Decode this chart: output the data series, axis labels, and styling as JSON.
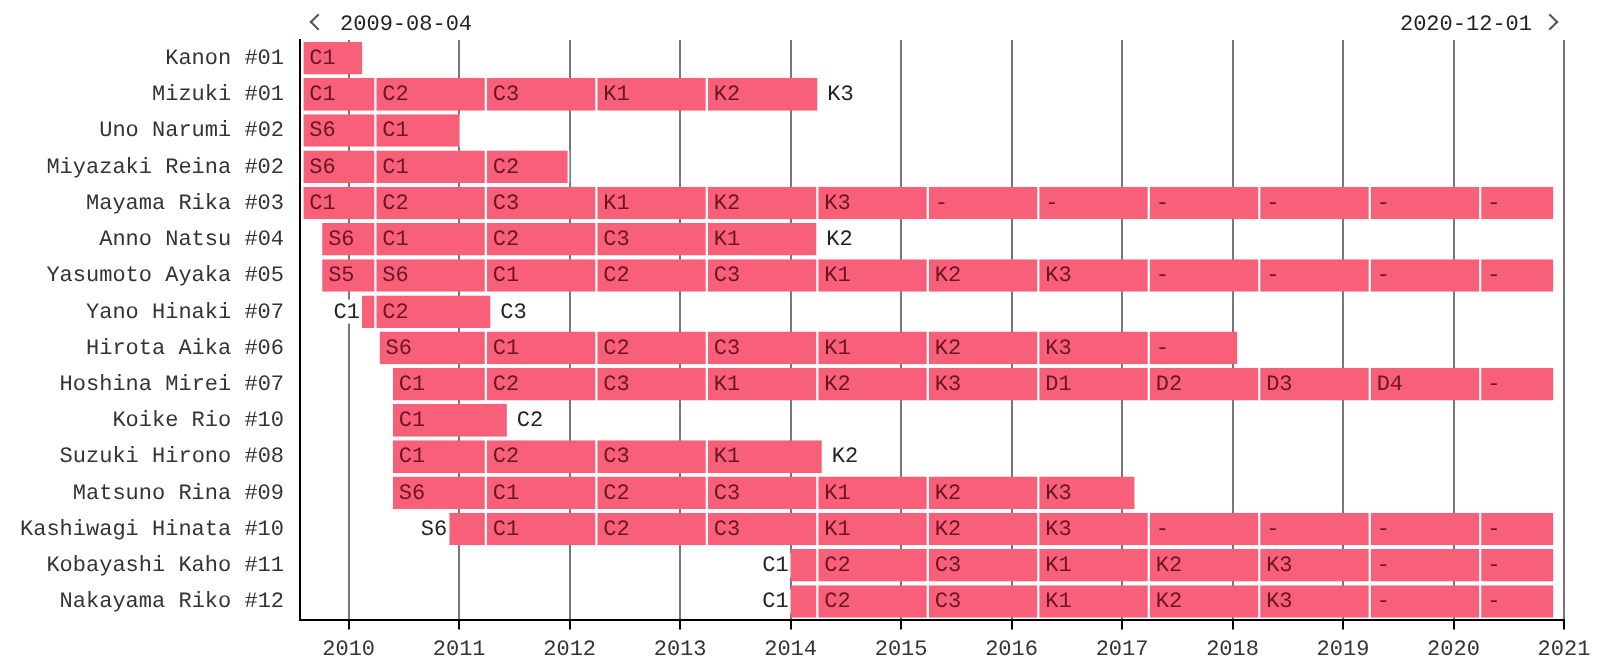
{
  "chart_data": {
    "type": "bar",
    "orientation": "horizontal",
    "grid": "x",
    "legend": false,
    "categories": [
      "Kanon #01",
      "Mizuki #01",
      "Uno Narumi #02",
      "Miyazaki Reina #02",
      "Mayama Rika #03",
      "Anno Natsu #04",
      "Yasumoto Ayaka #05",
      "Yano Hinaki #07",
      "Hirota Aika #06",
      "Hoshina Mirei #07",
      "Koike Rio #10",
      "Suzuki Hirono #08",
      "Matsuno Rina #09",
      "Kashiwagi Hinata #10",
      "Kobayashi Kaho #11",
      "Nakayama Riko #12"
    ],
    "xlim": [
      2009.56,
      2021
    ],
    "xticks": [
      2010,
      2011,
      2012,
      2013,
      2014,
      2015,
      2016,
      2017,
      2018,
      2019,
      2020,
      2021
    ],
    "series": [
      {
        "color": "#f8607a",
        "base": [
          2009.59,
          2009.59,
          2009.59,
          2009.59,
          2009.59,
          2009.76,
          2009.76,
          2010.12,
          2010.28,
          2010.4,
          2010.4,
          2010.4,
          2010.4,
          2010.91,
          2014.0,
          2014.0
        ],
        "values": [
          0.55,
          0.66,
          0.66,
          0.66,
          0.66,
          0.49,
          0.49,
          0.13,
          0.97,
          0.85,
          1.05,
          0.85,
          0.85,
          0.34,
          0.25,
          0.25
        ],
        "value_labels": [
          "C1",
          "C1",
          "S6",
          "S6",
          "C1",
          "S6",
          "S5",
          "C1",
          "S6",
          "C1",
          "C1",
          "C1",
          "S6",
          "S6",
          "C1",
          "C1"
        ]
      },
      {
        "color": "#f8607a",
        "base": [
          null,
          2010.25,
          2010.25,
          2010.25,
          2010.25,
          2010.25,
          2010.25,
          2010.25,
          2011.25,
          2011.25,
          null,
          2011.25,
          2011.25,
          2011.25,
          2014.25,
          2014.25
        ],
        "values": [
          null,
          1,
          0.77,
          1,
          1,
          1,
          1,
          1.05,
          1,
          1,
          null,
          1,
          1,
          1,
          1,
          1
        ],
        "value_labels": [
          null,
          "C2",
          "C1",
          "C1",
          "C2",
          "C1",
          "S6",
          "C2",
          "C1",
          "C2",
          null,
          "C2",
          "C1",
          "C1",
          "C2",
          "C2"
        ]
      },
      {
        "color": "#f8607a",
        "base": [
          null,
          2011.25,
          null,
          2011.25,
          2011.25,
          2011.25,
          2011.25,
          null,
          2012.25,
          2012.25,
          null,
          2012.25,
          2012.25,
          2012.25,
          2015.25,
          2015.25
        ],
        "values": [
          null,
          1,
          null,
          0.75,
          1,
          1,
          1,
          null,
          1,
          1,
          null,
          1,
          1,
          1,
          1,
          1
        ],
        "value_labels": [
          null,
          "C3",
          null,
          "C2",
          "C3",
          "C2",
          "C1",
          null,
          "C2",
          "C3",
          null,
          "C3",
          "C2",
          "C2",
          "C3",
          "C3"
        ]
      },
      {
        "color": "#f8607a",
        "base": [
          null,
          2012.25,
          null,
          null,
          2012.25,
          2012.25,
          2012.25,
          null,
          2013.25,
          2013.25,
          null,
          2013.25,
          2013.25,
          2013.25,
          2016.25,
          2016.25
        ],
        "values": [
          null,
          1,
          null,
          null,
          1,
          1,
          1,
          null,
          1,
          1,
          null,
          1.05,
          1,
          1,
          1,
          1
        ],
        "value_labels": [
          null,
          "K1",
          null,
          null,
          "K1",
          "C3",
          "C2",
          null,
          "C3",
          "K1",
          null,
          "K1",
          "C3",
          "C3",
          "K1",
          "K1"
        ]
      },
      {
        "color": "#f8607a",
        "base": [
          null,
          2013.25,
          null,
          null,
          2013.25,
          2013.25,
          2013.25,
          null,
          2014.25,
          2014.25,
          null,
          null,
          2014.25,
          2014.25,
          2017.25,
          2017.25
        ],
        "values": [
          null,
          1.01,
          null,
          null,
          1,
          1,
          1,
          null,
          1,
          1,
          null,
          null,
          1,
          1,
          1,
          1
        ],
        "value_labels": [
          null,
          "K2",
          null,
          null,
          "K2",
          "K1",
          "C3",
          null,
          "K1",
          "K2",
          null,
          null,
          "K1",
          "K1",
          "K2",
          "K2"
        ]
      },
      {
        "color": "#f8607a",
        "base": [
          null,
          null,
          null,
          null,
          2014.25,
          null,
          2014.25,
          null,
          2015.25,
          2015.25,
          null,
          null,
          2015.25,
          2015.25,
          2018.25,
          2018.25
        ],
        "values": [
          null,
          null,
          null,
          null,
          1,
          null,
          1,
          null,
          1,
          1,
          null,
          null,
          1,
          1,
          1,
          1
        ],
        "value_labels": [
          null,
          null,
          null,
          null,
          "K3",
          null,
          "K1",
          null,
          "K2",
          "K3",
          null,
          null,
          "K2",
          "K2",
          "K3",
          "K3"
        ]
      },
      {
        "color": "#f8607a",
        "base": [
          null,
          null,
          null,
          null,
          2015.25,
          null,
          2015.25,
          null,
          2016.25,
          2016.25,
          null,
          null,
          2016.25,
          2016.25,
          2019.25,
          2019.25
        ],
        "values": [
          null,
          null,
          null,
          null,
          1,
          null,
          1,
          null,
          1,
          1,
          null,
          null,
          0.88,
          1,
          1,
          1
        ],
        "value_labels": [
          null,
          null,
          null,
          null,
          "-",
          null,
          "K2",
          null,
          "K3",
          "D1",
          null,
          null,
          "K3",
          "K3",
          "-",
          "-"
        ]
      },
      {
        "color": "#f8607a",
        "base": [
          null,
          null,
          null,
          null,
          2016.25,
          null,
          2016.25,
          null,
          2017.25,
          2017.25,
          null,
          null,
          null,
          2017.25,
          2020.25,
          2020.25
        ],
        "values": [
          null,
          null,
          null,
          null,
          1,
          null,
          1,
          null,
          0.81,
          1,
          null,
          null,
          null,
          1,
          0.67,
          0.67
        ],
        "value_labels": [
          null,
          null,
          null,
          null,
          "-",
          null,
          "K3",
          null,
          "-",
          "D2",
          null,
          null,
          null,
          "-",
          "-",
          "-"
        ]
      },
      {
        "color": "#f8607a",
        "base": [
          null,
          null,
          null,
          null,
          2017.25,
          null,
          2017.25,
          null,
          null,
          2018.25,
          null,
          null,
          null,
          2018.25,
          null,
          null
        ],
        "values": [
          null,
          null,
          null,
          null,
          1,
          null,
          1,
          null,
          null,
          1,
          null,
          null,
          null,
          1,
          null,
          null
        ],
        "value_labels": [
          null,
          null,
          null,
          null,
          "-",
          null,
          "-",
          null,
          null,
          "D3",
          null,
          null,
          null,
          "-",
          null,
          null
        ]
      },
      {
        "color": "#f8607a",
        "base": [
          null,
          null,
          null,
          null,
          2018.25,
          null,
          2018.25,
          null,
          null,
          2019.25,
          null,
          null,
          null,
          2019.25,
          null,
          null
        ],
        "values": [
          null,
          null,
          null,
          null,
          1,
          null,
          1,
          null,
          null,
          1,
          null,
          null,
          null,
          1,
          null,
          null
        ],
        "value_labels": [
          null,
          null,
          null,
          null,
          "-",
          null,
          "-",
          null,
          null,
          "D4",
          null,
          null,
          null,
          "-",
          null,
          null
        ]
      },
      {
        "color": "#f8607a",
        "base": [
          null,
          null,
          null,
          null,
          2019.25,
          null,
          2019.25,
          null,
          null,
          2020.25,
          null,
          null,
          null,
          2020.25,
          null,
          null
        ],
        "values": [
          null,
          null,
          null,
          null,
          1,
          null,
          1,
          null,
          null,
          0.67,
          null,
          null,
          null,
          0.67,
          null,
          null
        ],
        "value_labels": [
          null,
          null,
          null,
          null,
          "-",
          null,
          "-",
          null,
          null,
          "-",
          null,
          null,
          null,
          "-",
          null,
          null
        ]
      },
      {
        "color": "#f8607a",
        "base": [
          null,
          null,
          null,
          null,
          2020.25,
          null,
          2020.25,
          null,
          null,
          null,
          null,
          null,
          null,
          null,
          null,
          null
        ],
        "values": [
          null,
          null,
          null,
          null,
          0.67,
          null,
          0.67,
          null,
          null,
          null,
          null,
          null,
          null,
          null,
          null,
          null
        ],
        "value_labels": [
          null,
          null,
          null,
          null,
          "-",
          null,
          "-",
          null,
          null,
          null,
          null,
          null,
          null,
          null,
          null,
          null
        ]
      }
    ],
    "annotations": [
      "2009-08-04",
      "2020-12-01",
      {
        "text": "K3",
        "x": 2014.26,
        "y": "Mizuki #01"
      },
      {
        "text": "K2",
        "x": 2014.25,
        "y": "Anno Natsu #04"
      },
      {
        "text": "C3",
        "x": 2011.3,
        "y": "Yano Hinaki #07"
      },
      {
        "text": "C2",
        "x": 2011.45,
        "y": "Koike Rio #10"
      },
      {
        "text": "K2",
        "x": 2014.3,
        "y": "Suzuki Hirono #08"
      }
    ]
  }
}
